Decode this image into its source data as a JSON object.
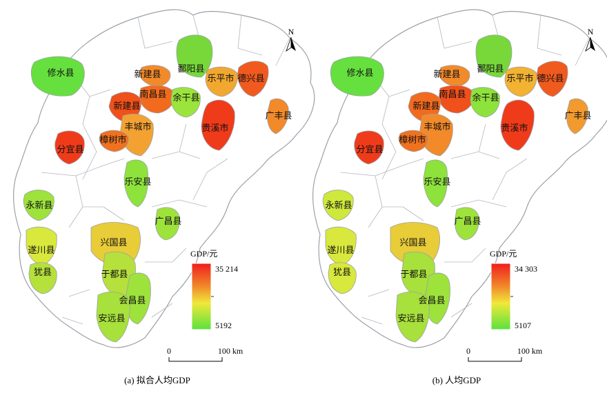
{
  "panels": [
    {
      "caption": "(a) 拟合人均GDP",
      "legend": {
        "title": "GDP/元",
        "max": "35 214",
        "min": "5192"
      },
      "scale": {
        "zero": "0",
        "end": "100 km"
      },
      "north": "N",
      "counties": [
        {
          "name": "修水县",
          "color": "#66e03e"
        },
        {
          "name": "鄱阳县",
          "color": "#78d83a"
        },
        {
          "name": "新建县",
          "color": "#f28a2a"
        },
        {
          "name": "南昌县",
          "color": "#f26a1e"
        },
        {
          "name": "余干县",
          "color": "#9be43c"
        },
        {
          "name": "乐平市",
          "color": "#f2a830"
        },
        {
          "name": "德兴县",
          "color": "#f05a1e"
        },
        {
          "name": "新建县",
          "color": "#f0501a"
        },
        {
          "name": "丰城市",
          "color": "#f3a232"
        },
        {
          "name": "樟树市",
          "color": "#f0721f"
        },
        {
          "name": "贵溪市",
          "color": "#f03b1a"
        },
        {
          "name": "广丰县",
          "color": "#f28a2a"
        },
        {
          "name": "分宜县",
          "color": "#f03b1a"
        },
        {
          "name": "乐安县",
          "color": "#8ee23c"
        },
        {
          "name": "永新县",
          "color": "#9ee23c"
        },
        {
          "name": "广昌县",
          "color": "#9ee23c"
        },
        {
          "name": "兴国县",
          "color": "#e8cc38"
        },
        {
          "name": "遂川县",
          "color": "#d8e83c"
        },
        {
          "name": "犹县",
          "color": "#b6e03c"
        },
        {
          "name": "于都县",
          "color": "#b6e03c"
        },
        {
          "name": "会昌县",
          "color": "#9ee23c"
        },
        {
          "name": "安远县",
          "color": "#a8e03c"
        }
      ]
    },
    {
      "caption": "(b) 人均GDP",
      "legend": {
        "title": "GDP/元",
        "max": "34 303",
        "min": "5107"
      },
      "scale": {
        "zero": "0",
        "end": "100 km"
      },
      "north": "N",
      "counties": [
        {
          "name": "修水县",
          "color": "#66e03e"
        },
        {
          "name": "鄱阳县",
          "color": "#78d83a"
        },
        {
          "name": "新建县",
          "color": "#f28a2a"
        },
        {
          "name": "南昌县",
          "color": "#f0501a"
        },
        {
          "name": "余干县",
          "color": "#8ee23c"
        },
        {
          "name": "乐平市",
          "color": "#f2b232"
        },
        {
          "name": "德兴县",
          "color": "#f05a1e"
        },
        {
          "name": "新建县",
          "color": "#f26a1e"
        },
        {
          "name": "丰城市",
          "color": "#f28a2a"
        },
        {
          "name": "樟树市",
          "color": "#f0721f"
        },
        {
          "name": "贵溪市",
          "color": "#f03b1a"
        },
        {
          "name": "广丰县",
          "color": "#f29a2e"
        },
        {
          "name": "分宜县",
          "color": "#f03b1a"
        },
        {
          "name": "乐安县",
          "color": "#8ee23c"
        },
        {
          "name": "永新县",
          "color": "#cfe83c"
        },
        {
          "name": "广昌县",
          "color": "#9ee23c"
        },
        {
          "name": "兴国县",
          "color": "#e8cc38"
        },
        {
          "name": "遂川县",
          "color": "#d8e83c"
        },
        {
          "name": "犹县",
          "color": "#d8e83c"
        },
        {
          "name": "于都县",
          "color": "#a8e03c"
        },
        {
          "name": "会昌县",
          "color": "#9ee23c"
        },
        {
          "name": "安远县",
          "color": "#a8e03c"
        }
      ]
    }
  ]
}
